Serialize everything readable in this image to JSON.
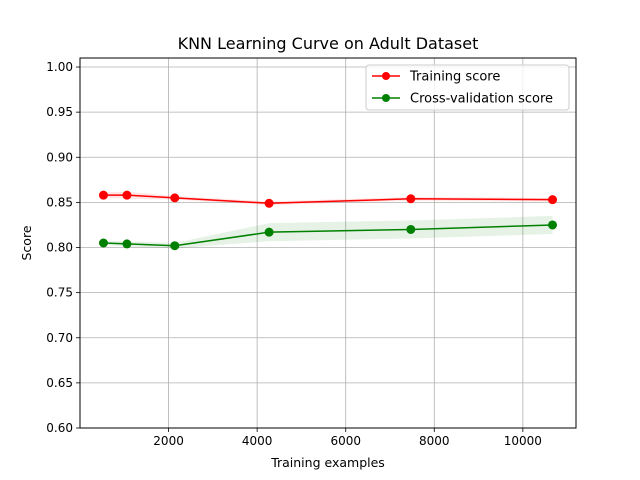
{
  "chart_data": {
    "type": "line",
    "title": "KNN Learning Curve on Adult Dataset",
    "xlabel": "Training examples",
    "ylabel": "Score",
    "xlim": [
      0,
      11200
    ],
    "ylim": [
      0.6,
      1.01
    ],
    "xticks": [
      2000,
      4000,
      6000,
      8000,
      10000
    ],
    "xtick_labels": [
      "2000",
      "4000",
      "6000",
      "8000",
      "10000"
    ],
    "yticks": [
      0.6,
      0.65,
      0.7,
      0.75,
      0.8,
      0.85,
      0.9,
      0.95,
      1.0
    ],
    "ytick_labels": [
      "0.60",
      "0.65",
      "0.70",
      "0.75",
      "0.80",
      "0.85",
      "0.90",
      "0.95",
      "1.00"
    ],
    "grid": true,
    "legend_position": "top-right",
    "x": [
      530,
      1060,
      2140,
      4270,
      7470,
      10670
    ],
    "series": [
      {
        "name": "Training score",
        "color": "#ff0000",
        "band_color": "#ff0000",
        "values": [
          0.858,
          0.858,
          0.855,
          0.849,
          0.854,
          0.853
        ],
        "band_lower": [
          0.855,
          0.854,
          0.853,
          0.847,
          0.852,
          0.851
        ],
        "band_upper": [
          0.861,
          0.862,
          0.857,
          0.851,
          0.856,
          0.855
        ]
      },
      {
        "name": "Cross-validation score",
        "color": "#008000",
        "band_color": "#008000",
        "values": [
          0.805,
          0.804,
          0.802,
          0.817,
          0.82,
          0.825
        ],
        "band_lower": [
          0.803,
          0.801,
          0.799,
          0.807,
          0.81,
          0.815
        ],
        "band_upper": [
          0.807,
          0.807,
          0.805,
          0.827,
          0.83,
          0.835
        ]
      }
    ]
  }
}
